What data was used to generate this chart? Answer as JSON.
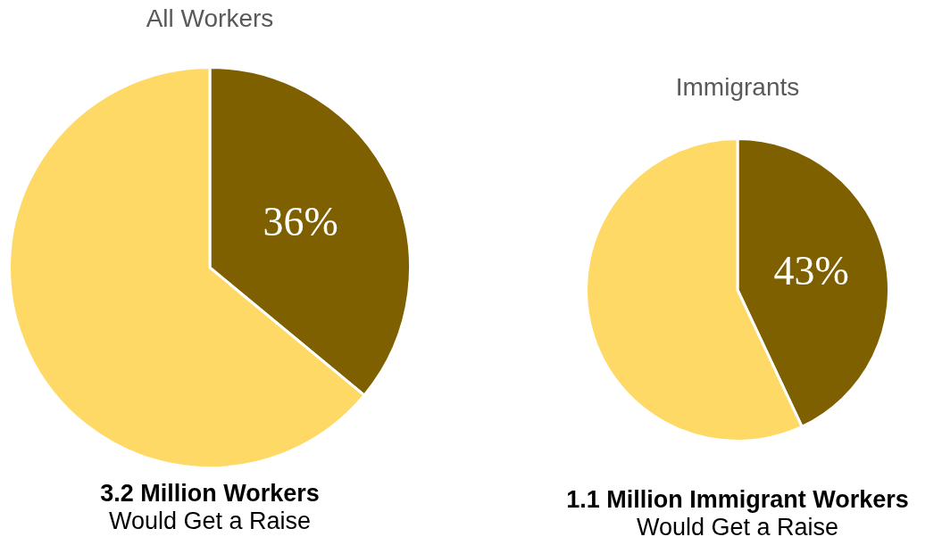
{
  "chart_data": [
    {
      "type": "pie",
      "title": "All Workers",
      "categories": [
        null,
        null
      ],
      "values": [
        36,
        64
      ],
      "colors": [
        "#7f6000",
        "#ffd966"
      ],
      "value_labels": [
        "36%",
        null
      ],
      "legend": false,
      "annotations": [
        "3.2 Million Workers",
        "Would Get a Raise"
      ]
    },
    {
      "type": "pie",
      "title": "Immigrants",
      "categories": [
        null,
        null
      ],
      "values": [
        43,
        57
      ],
      "colors": [
        "#7f6000",
        "#ffd966"
      ],
      "value_labels": [
        "43%",
        null
      ],
      "legend": false,
      "annotations": [
        "1.1 Million Immigrant Workers",
        "Would Get a Raise"
      ]
    }
  ]
}
